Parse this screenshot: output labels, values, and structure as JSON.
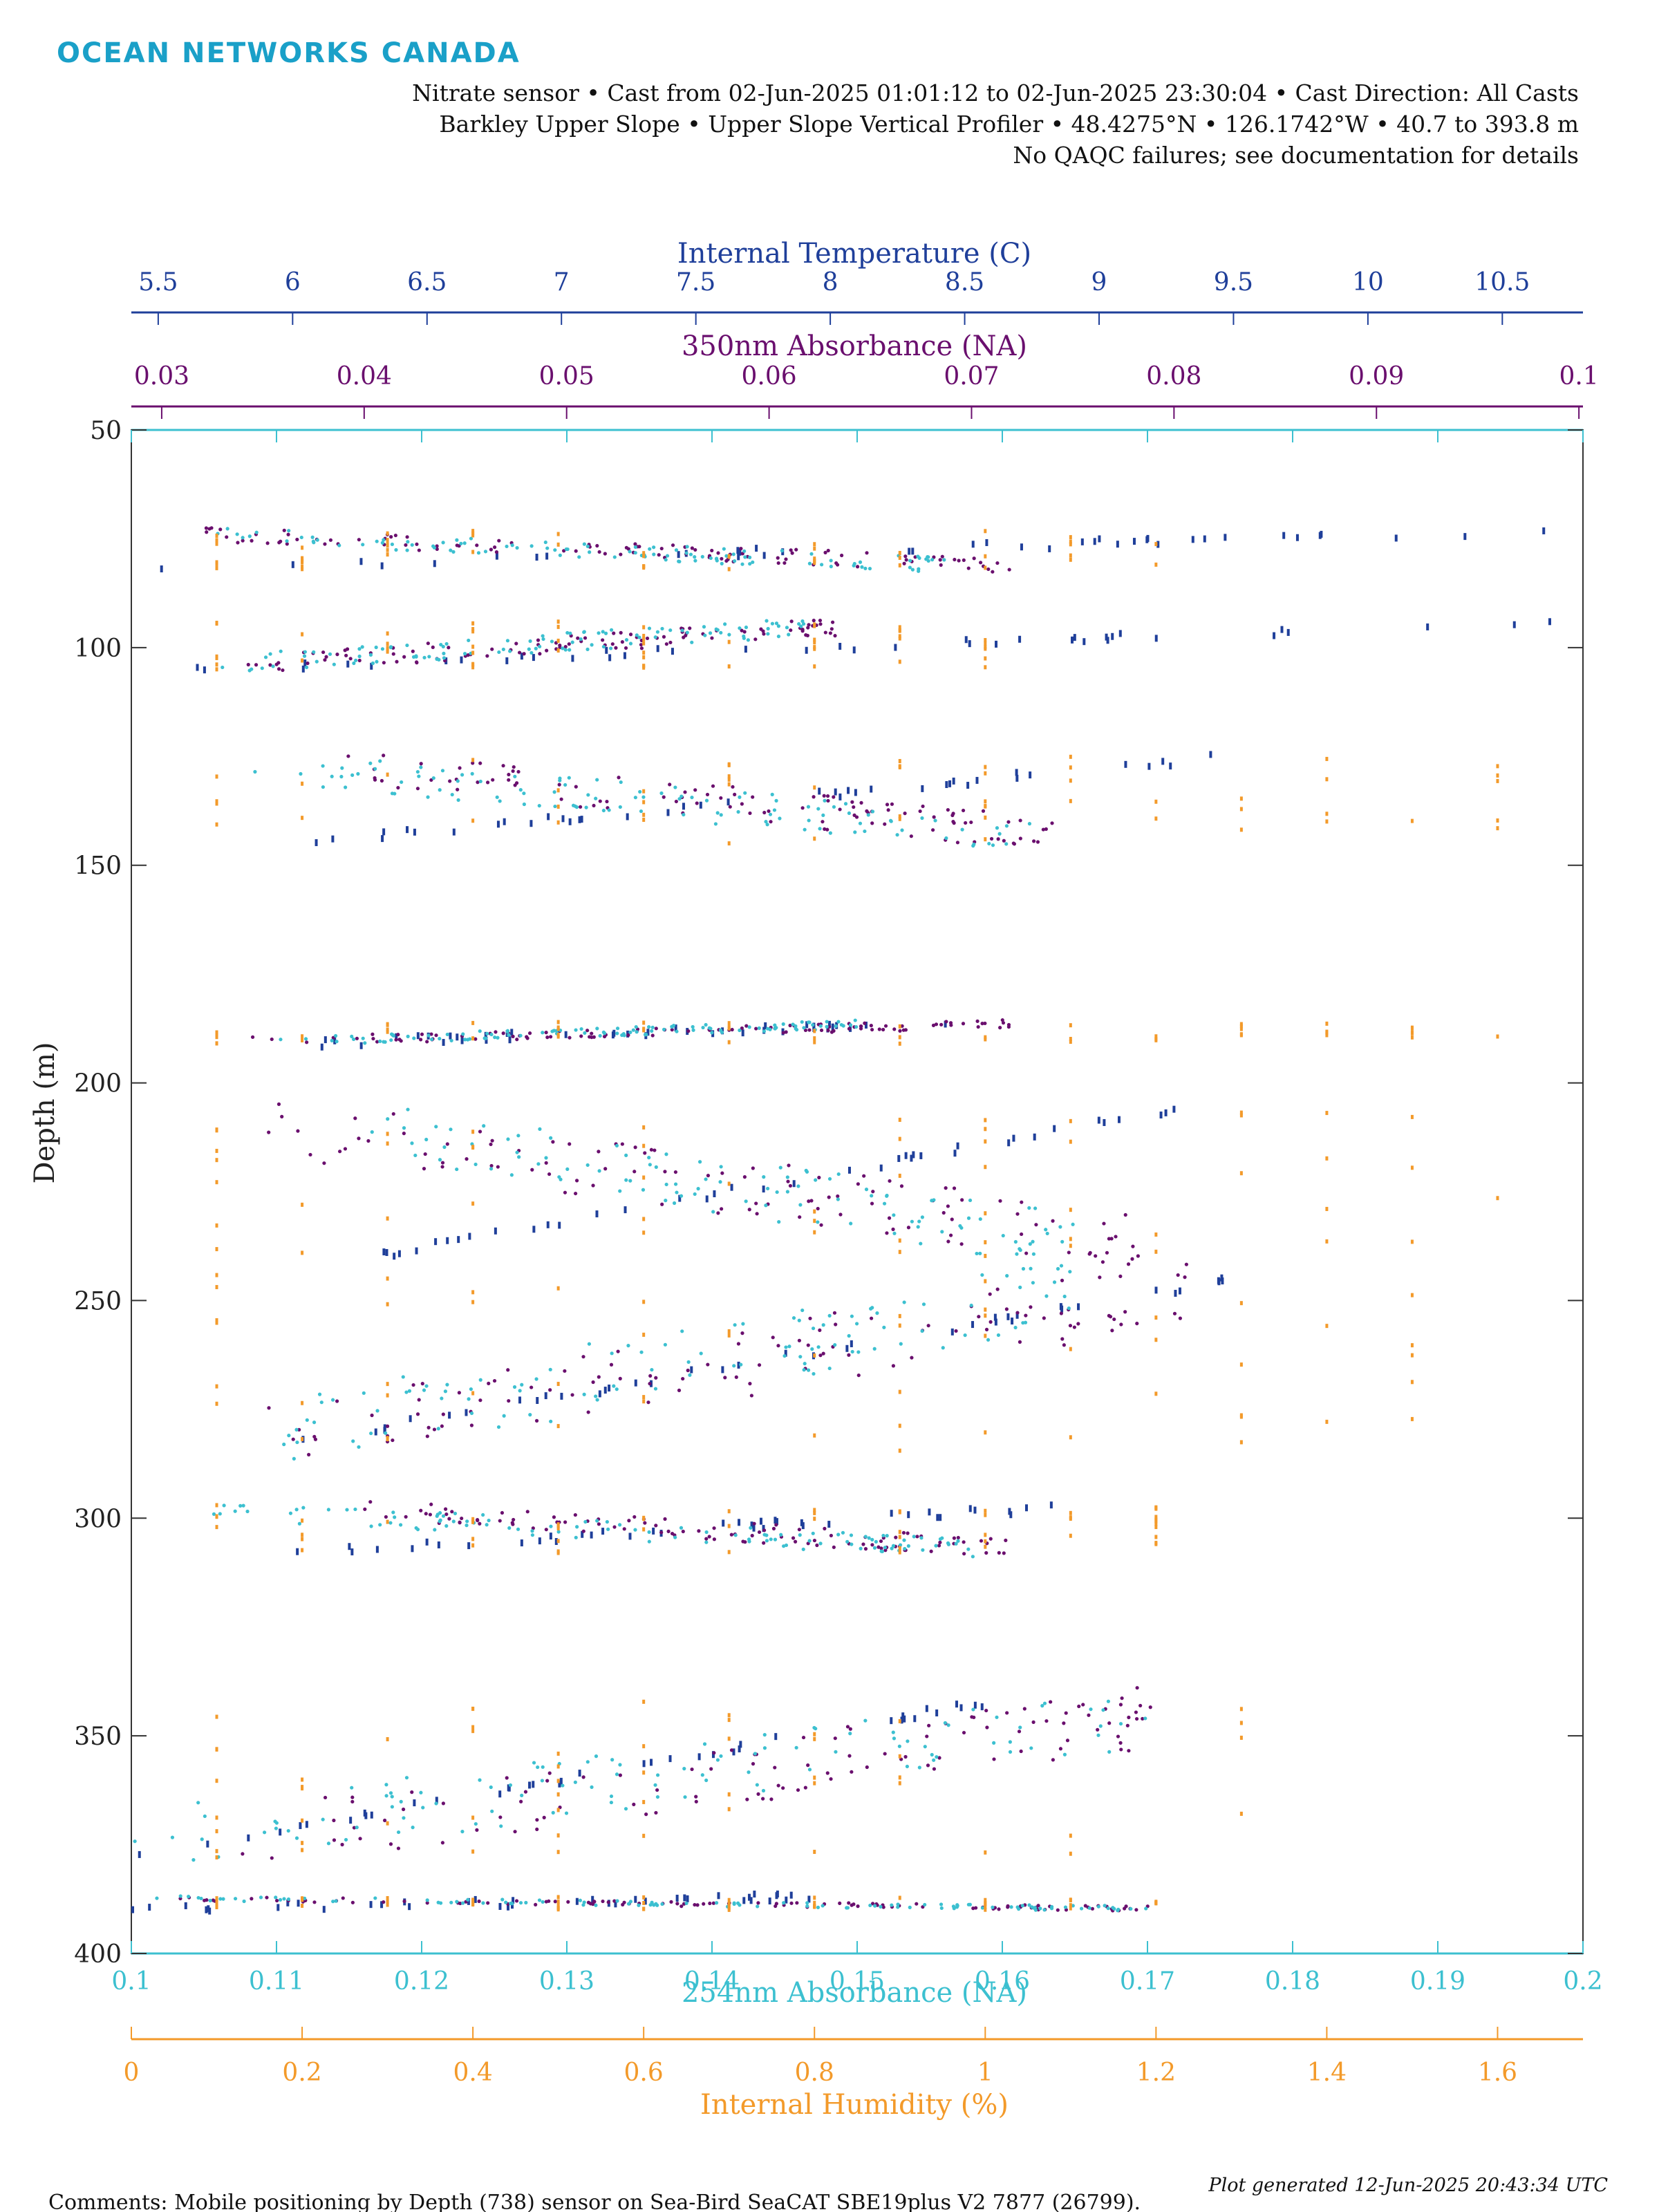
{
  "brand": {
    "logo_text": "OCEAN NETWORKS CANADA",
    "color": "#1aa0c8"
  },
  "header": {
    "line1": "Nitrate sensor • Cast from 02-Jun-2025 01:01:12 to 02-Jun-2025 23:30:04 • Cast Direction: All Casts",
    "line2": "Barkley Upper Slope • Upper Slope Vertical Profiler • 48.4275°N • 126.1742°W • 40.7 to 393.8 m",
    "line3": "No QAQC failures; see documentation for details"
  },
  "footer": {
    "generated": "Plot generated 12-Jun-2025 20:43:34 UTC",
    "comments": "Comments: Mobile positioning by Depth (738) sensor on Sea-Bird SeaCAT SBE19plus V2 7877 (26799)."
  },
  "chart_data": {
    "type": "scatter",
    "y_axis": {
      "label": "Depth (m)",
      "range": [
        50,
        400
      ],
      "inverted": true,
      "ticks": [
        "50",
        "100",
        "150",
        "200",
        "250",
        "300",
        "350",
        "400"
      ]
    },
    "x_axes": [
      {
        "id": "temperature",
        "label": "Internal Temperature (C)",
        "position": "top-outer",
        "color": "#1f3f9a",
        "range": [
          5.4,
          10.8
        ],
        "tick_values": [
          5.5,
          6,
          6.5,
          7,
          7.5,
          8,
          8.5,
          9,
          9.5,
          10,
          10.5
        ],
        "ticks": [
          "5.5",
          "6",
          "6.5",
          "7",
          "7.5",
          "8",
          "8.5",
          "9",
          "9.5",
          "10",
          "10.5"
        ]
      },
      {
        "id": "abs350",
        "label": "350nm Absorbance (NA)",
        "position": "top-inner",
        "color": "#6a0f6e",
        "range": [
          0.0285,
          0.1002
        ],
        "tick_values": [
          0.03,
          0.04,
          0.05,
          0.06,
          0.07,
          0.08,
          0.09,
          0.1
        ],
        "ticks": [
          "0.03",
          "0.04",
          "0.05",
          "0.06",
          "0.07",
          "0.08",
          "0.09",
          "0.1"
        ]
      },
      {
        "id": "abs254",
        "label": "254nm Absorbance (NA)",
        "position": "bottom-inner",
        "color": "#3cc0d0",
        "range": [
          0.1,
          0.2
        ],
        "tick_values": [
          0.1,
          0.11,
          0.12,
          0.13,
          0.14,
          0.15,
          0.16,
          0.17,
          0.18,
          0.19,
          0.2
        ],
        "ticks": [
          "0.1",
          "0.11",
          "0.12",
          "0.13",
          "0.14",
          "0.15",
          "0.16",
          "0.17",
          "0.18",
          "0.19",
          "0.2"
        ]
      },
      {
        "id": "humidity",
        "label": "Internal Humidity (%)",
        "position": "bottom-outer",
        "color": "#f39a2a",
        "range": [
          0,
          1.7
        ],
        "tick_values": [
          0,
          0.2,
          0.4,
          0.6,
          0.8,
          1,
          1.2,
          1.4,
          1.6
        ],
        "ticks": [
          "0",
          "0.2",
          "0.4",
          "0.6",
          "0.8",
          "1",
          "1.2",
          "1.4",
          "1.6"
        ]
      }
    ],
    "series": [
      {
        "name": "Internal Temperature (C)",
        "axis": "temperature",
        "color": "#1f3f9a"
      },
      {
        "name": "350nm Absorbance (NA)",
        "axis": "abs350",
        "color": "#6a0f6e"
      },
      {
        "name": "254nm Absorbance (NA)",
        "axis": "abs254",
        "color": "#3cc0d0"
      },
      {
        "name": "Internal Humidity (%)",
        "axis": "humidity",
        "color": "#f39a2a"
      }
    ],
    "profile_bands": [
      {
        "depth_shallow": 73,
        "depth_deep": 82,
        "temp": [
          5.4,
          10.8
        ],
        "abs350": [
          0.031,
          0.072
        ],
        "abs254": [
          0.105,
          0.156
        ],
        "humidity": [
          0.1,
          1.2
        ]
      },
      {
        "depth_shallow": 94,
        "depth_deep": 105,
        "temp": [
          5.6,
          10.7
        ],
        "abs350": [
          0.034,
          0.064
        ],
        "abs254": [
          0.106,
          0.147
        ],
        "humidity": [
          0.1,
          1.0
        ]
      },
      {
        "depth_shallow": 125,
        "depth_deep": 145,
        "temp": [
          6.0,
          9.5
        ],
        "abs350": [
          0.038,
          0.074
        ],
        "abs254": [
          0.108,
          0.162
        ],
        "humidity": [
          0.1,
          1.6
        ]
      },
      {
        "depth_shallow": 186,
        "depth_deep": 191,
        "temp": [
          6.0,
          8.5
        ],
        "abs350": [
          0.034,
          0.072
        ],
        "abs254": [
          0.11,
          0.15
        ],
        "humidity": [
          0.1,
          1.6
        ]
      },
      {
        "depth_shallow": 206,
        "depth_deep": 240,
        "temp": [
          6.3,
          9.3
        ],
        "abs350": [
          0.034,
          0.079
        ],
        "abs254": [
          0.115,
          0.165
        ],
        "humidity": [
          0.1,
          1.6
        ]
      },
      {
        "depth_shallow": 244,
        "depth_deep": 285,
        "temp": [
          5.8,
          9.6
        ],
        "abs350": [
          0.035,
          0.081
        ],
        "abs254": [
          0.11,
          0.165
        ],
        "humidity": [
          0.1,
          1.5
        ]
      },
      {
        "depth_shallow": 297,
        "depth_deep": 308,
        "temp": [
          6.0,
          9.0
        ],
        "abs350": [
          0.04,
          0.072
        ],
        "abs254": [
          0.105,
          0.158
        ],
        "humidity": [
          0.1,
          1.2
        ]
      },
      {
        "depth_shallow": 342,
        "depth_deep": 378,
        "temp": [
          5.4,
          8.6
        ],
        "abs350": [
          0.033,
          0.079
        ],
        "abs254": [
          0.1,
          0.17
        ],
        "humidity": [
          0.1,
          1.3
        ]
      },
      {
        "depth_shallow": 387,
        "depth_deep": 390,
        "temp": [
          5.4,
          8.0
        ],
        "abs350": [
          0.029,
          0.079
        ],
        "abs254": [
          0.1,
          0.17
        ],
        "humidity": [
          0.1,
          1.2
        ]
      }
    ]
  }
}
